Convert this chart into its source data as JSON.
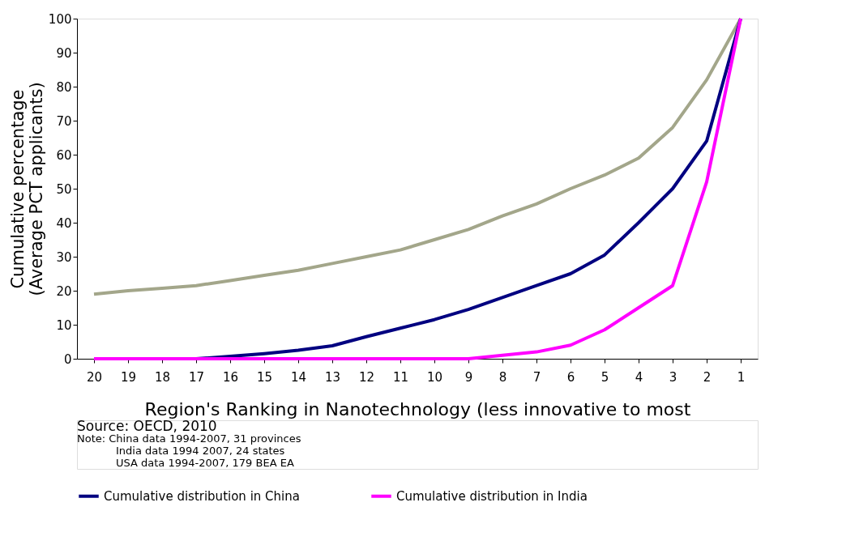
{
  "chart_data": {
    "type": "line",
    "xlabel": "Region's Ranking in Nanotechnology (less innovative to most",
    "ylabel": "Cumulative percentage (Average PCT applicants)",
    "categories": [
      "20",
      "19",
      "18",
      "17",
      "16",
      "15",
      "14",
      "13",
      "12",
      "11",
      "10",
      "9",
      "8",
      "7",
      "6",
      "5",
      "4",
      "3",
      "2",
      "1"
    ],
    "series": [
      {
        "color": "#a3a68a",
        "values": [
          19,
          20,
          20.7,
          21.5,
          23,
          24.5,
          26,
          28,
          30,
          32,
          35,
          38,
          42,
          45.5,
          50,
          54,
          59,
          68,
          82,
          100
        ]
      },
      {
        "name": "Cumulative distribution in China",
        "color": "#000080",
        "values": [
          null,
          null,
          null,
          0,
          0.7,
          1.5,
          2.5,
          3.8,
          6.5,
          9,
          11.5,
          14.5,
          18,
          21.5,
          25,
          30.5,
          40,
          50,
          64,
          100
        ]
      },
      {
        "name": "Cumulative distribution in India",
        "color": "#ff00ff",
        "values": [
          0,
          0,
          0,
          0,
          0,
          0,
          0,
          0,
          0,
          0,
          0,
          0,
          1,
          2,
          4,
          8.5,
          15,
          21.5,
          52,
          100
        ]
      }
    ],
    "ylim": [
      0,
      100
    ],
    "yticks": [
      0,
      10,
      20,
      30,
      40,
      50,
      60,
      70,
      80,
      90,
      100
    ],
    "grid": false,
    "legend": "bottom",
    "marker": "none",
    "line_style": "solid",
    "annotations": [
      "Source: OECD, 2010",
      "Note: China data 1994-2007, 31 provinces",
      "India data 1994  2007, 24 states",
      "USA  data 1994-2007, 179 BEA EA"
    ]
  }
}
